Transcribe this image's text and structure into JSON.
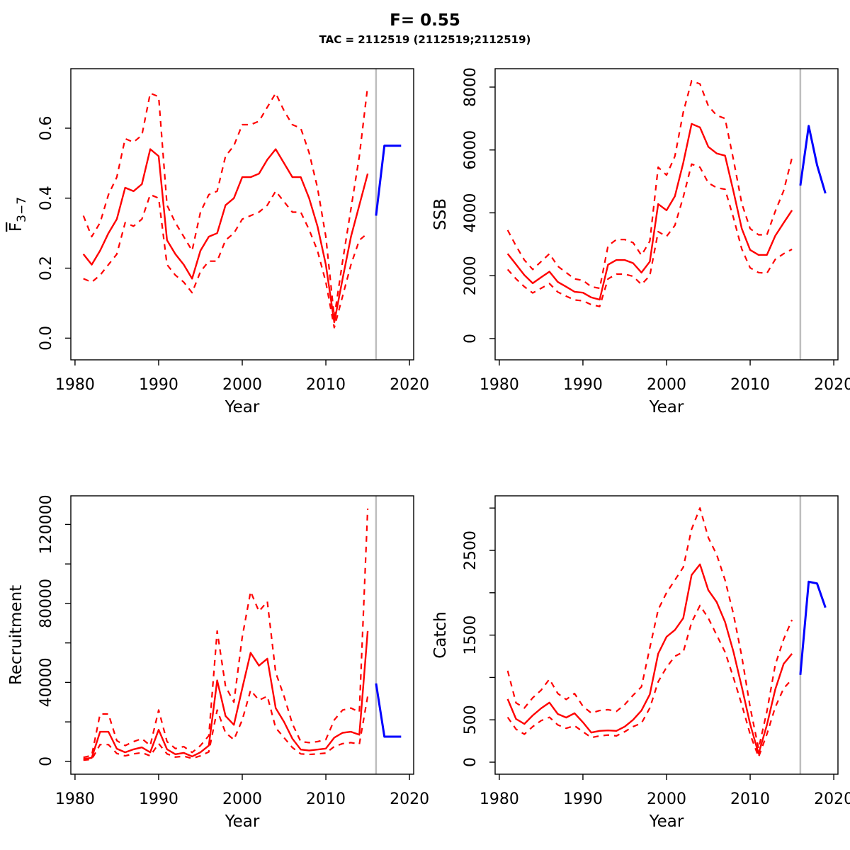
{
  "header": {
    "title": "F= 0.55",
    "subtitle": "TAC = 2112519 (2112519;2112519)"
  },
  "chart_data": {
    "type": "line",
    "layout": "2x2-grid",
    "legend": "none",
    "grid": "off",
    "x": {
      "label": "Year",
      "ticks": [
        1980,
        1990,
        2000,
        2010,
        2020
      ],
      "lim": [
        1979.5,
        2020.5
      ]
    },
    "divider_year": 2016,
    "history_years": [
      1981,
      1982,
      1983,
      1984,
      1985,
      1986,
      1987,
      1988,
      1989,
      1990,
      1991,
      1992,
      1993,
      1994,
      1995,
      1996,
      1997,
      1998,
      1999,
      2000,
      2001,
      2002,
      2003,
      2004,
      2005,
      2006,
      2007,
      2008,
      2009,
      2010,
      2011,
      2012,
      2013,
      2014,
      2015
    ],
    "forecast_years": [
      2016,
      2017,
      2018,
      2019
    ],
    "style": {
      "median_color": "#ff0000",
      "ci_color": "#ff0000",
      "forecast_color": "#0000ff",
      "divider_color": "#bebebe",
      "frame_color": "#000000"
    },
    "panels": [
      {
        "id": "fbar",
        "ylabel": "F3−7",
        "ylabel_base": "F",
        "ylabel_base_overline": true,
        "ylabel_sub": "3−7",
        "ylim": [
          -0.062,
          0.77
        ],
        "yticks": [
          {
            "value": 0.0,
            "label": "0.0"
          },
          {
            "value": 0.2,
            "label": "0.2"
          },
          {
            "value": 0.4,
            "label": "0.4"
          },
          {
            "value": 0.6,
            "label": "0.6"
          }
        ],
        "median": [
          0.24,
          0.21,
          0.25,
          0.3,
          0.34,
          0.43,
          0.42,
          0.44,
          0.54,
          0.52,
          0.28,
          0.24,
          0.21,
          0.17,
          0.25,
          0.29,
          0.3,
          0.38,
          0.4,
          0.46,
          0.46,
          0.47,
          0.51,
          0.54,
          0.5,
          0.46,
          0.46,
          0.4,
          0.32,
          0.21,
          0.045,
          0.17,
          0.29,
          0.38,
          0.47
        ],
        "upper": [
          0.35,
          0.29,
          0.33,
          0.41,
          0.46,
          0.57,
          0.56,
          0.58,
          0.7,
          0.69,
          0.38,
          0.33,
          0.29,
          0.25,
          0.36,
          0.41,
          0.42,
          0.52,
          0.55,
          0.61,
          0.61,
          0.62,
          0.66,
          0.7,
          0.65,
          0.61,
          0.6,
          0.53,
          0.43,
          0.29,
          0.06,
          0.22,
          0.37,
          0.52,
          0.72
        ],
        "lower": [
          0.17,
          0.16,
          0.18,
          0.21,
          0.24,
          0.33,
          0.32,
          0.34,
          0.41,
          0.4,
          0.21,
          0.18,
          0.16,
          0.13,
          0.19,
          0.22,
          0.22,
          0.28,
          0.3,
          0.34,
          0.35,
          0.36,
          0.38,
          0.42,
          0.39,
          0.36,
          0.36,
          0.31,
          0.25,
          0.16,
          0.03,
          0.12,
          0.21,
          0.28,
          0.3
        ],
        "forecast": [
          0.35,
          0.55,
          0.55,
          0.55
        ]
      },
      {
        "id": "ssb",
        "ylabel": "SSB",
        "ylim": [
          -676,
          8585
        ],
        "yticks": [
          {
            "value": 0,
            "label": "0"
          },
          {
            "value": 2000,
            "label": "2000"
          },
          {
            "value": 4000,
            "label": "4000"
          },
          {
            "value": 6000,
            "label": "6000"
          },
          {
            "value": 8000,
            "label": "8000"
          }
        ],
        "median": [
          2700,
          2360,
          2020,
          1760,
          1950,
          2130,
          1800,
          1650,
          1490,
          1460,
          1310,
          1240,
          2350,
          2500,
          2500,
          2400,
          2100,
          2450,
          4280,
          4080,
          4530,
          5590,
          6830,
          6720,
          6100,
          5890,
          5820,
          4690,
          3500,
          2820,
          2660,
          2660,
          3270,
          3680,
          4080
        ],
        "upper": [
          3450,
          2950,
          2500,
          2200,
          2450,
          2700,
          2300,
          2100,
          1900,
          1850,
          1650,
          1600,
          2950,
          3150,
          3150,
          3050,
          2650,
          3100,
          5450,
          5200,
          5800,
          7200,
          8200,
          8100,
          7400,
          7100,
          7000,
          5700,
          4300,
          3500,
          3300,
          3300,
          4050,
          4700,
          5750
        ],
        "lower": [
          2200,
          1900,
          1650,
          1450,
          1600,
          1750,
          1480,
          1350,
          1230,
          1200,
          1080,
          1020,
          1900,
          2050,
          2050,
          1980,
          1720,
          2000,
          3400,
          3250,
          3600,
          4500,
          5550,
          5450,
          4950,
          4800,
          4750,
          3850,
          2850,
          2250,
          2100,
          2080,
          2520,
          2700,
          2840
        ],
        "forecast": [
          4870,
          6765,
          5520,
          4620
        ]
      },
      {
        "id": "recruitment",
        "ylabel": "Recruitment",
        "ylim": [
          -6500,
          134500
        ],
        "yticks": [
          {
            "value": 0,
            "label": "0"
          },
          {
            "value": 20000,
            "label": ""
          },
          {
            "value": 40000,
            "label": "40000"
          },
          {
            "value": 60000,
            "label": ""
          },
          {
            "value": 80000,
            "label": "80000"
          },
          {
            "value": 100000,
            "label": ""
          },
          {
            "value": 120000,
            "label": "120000"
          }
        ],
        "median": [
          1200,
          1800,
          15000,
          15000,
          6400,
          4600,
          6100,
          7100,
          4600,
          16000,
          6100,
          3600,
          4300,
          2500,
          4600,
          8000,
          41000,
          23000,
          18500,
          37000,
          55000,
          48500,
          52000,
          27000,
          20000,
          11500,
          6000,
          5500,
          6000,
          6500,
          12000,
          14500,
          15000,
          13500,
          66000
        ],
        "upper": [
          2000,
          3000,
          24000,
          24000,
          10500,
          8000,
          10000,
          11500,
          8000,
          26000,
          10000,
          6500,
          7500,
          4500,
          8000,
          13000,
          66000,
          38000,
          30000,
          63000,
          86000,
          76000,
          81000,
          45000,
          33000,
          19000,
          10000,
          9500,
          10000,
          11000,
          21000,
          26000,
          27000,
          25000,
          128000
        ],
        "lower": [
          600,
          1000,
          8500,
          8500,
          4000,
          2800,
          3800,
          4400,
          2800,
          9000,
          3800,
          2200,
          2600,
          1500,
          2800,
          4800,
          26000,
          14500,
          11000,
          21000,
          36000,
          31000,
          33000,
          17000,
          12000,
          7000,
          3800,
          3500,
          3800,
          4200,
          7500,
          9000,
          9500,
          8700,
          33000
        ],
        "forecast": [
          39500,
          12500,
          12500,
          12500
        ]
      },
      {
        "id": "catch",
        "ylabel": "Catch",
        "ylim": [
          -142,
          3144
        ],
        "yticks": [
          {
            "value": 0,
            "label": "0"
          },
          {
            "value": 500,
            "label": "500"
          },
          {
            "value": 1000,
            "label": ""
          },
          {
            "value": 1500,
            "label": "1500"
          },
          {
            "value": 2000,
            "label": ""
          },
          {
            "value": 2500,
            "label": "2500"
          },
          {
            "value": 3000,
            "label": ""
          }
        ],
        "median": [
          745,
          510,
          452,
          552,
          636,
          703,
          569,
          527,
          578,
          470,
          350,
          370,
          375,
          370,
          420,
          500,
          610,
          800,
          1280,
          1480,
          1560,
          1700,
          2210,
          2335,
          2030,
          1890,
          1655,
          1305,
          890,
          450,
          100,
          440,
          860,
          1160,
          1280
        ],
        "upper": [
          1080,
          700,
          640,
          760,
          850,
          980,
          810,
          740,
          810,
          660,
          580,
          610,
          620,
          600,
          680,
          790,
          890,
          1350,
          1800,
          2000,
          2150,
          2300,
          2750,
          3000,
          2650,
          2450,
          2150,
          1750,
          1250,
          650,
          160,
          600,
          1150,
          1450,
          1680
        ],
        "lower": [
          530,
          390,
          330,
          420,
          490,
          530,
          440,
          400,
          430,
          360,
          290,
          310,
          320,
          310,
          360,
          420,
          460,
          640,
          950,
          1120,
          1250,
          1300,
          1650,
          1850,
          1700,
          1500,
          1300,
          1000,
          680,
          330,
          60,
          330,
          650,
          870,
          980
        ],
        "forecast": [
          1030,
          2130,
          2110,
          1825
        ]
      }
    ]
  }
}
